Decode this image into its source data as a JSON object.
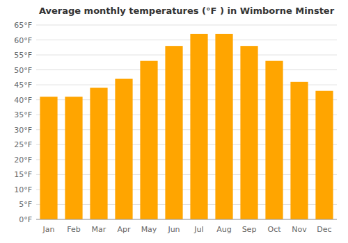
{
  "chart_data": {
    "type": "bar",
    "title": "Average monthly temperatures (°F ) in Wimborne Minster",
    "categories": [
      "Jan",
      "Feb",
      "Mar",
      "Apr",
      "May",
      "Jun",
      "Jul",
      "Aug",
      "Sep",
      "Oct",
      "Nov",
      "Dec"
    ],
    "values": [
      41,
      41,
      44,
      47,
      53,
      58,
      62,
      62,
      58,
      53,
      46,
      43
    ],
    "color": "#FFA500",
    "ylim": [
      0,
      65
    ],
    "yticks": [
      {
        "value": 0,
        "label": "0°F"
      },
      {
        "value": 5,
        "label": "5°F"
      },
      {
        "value": 10,
        "label": "10°F"
      },
      {
        "value": 15,
        "label": "15°F"
      },
      {
        "value": 20,
        "label": "20°F"
      },
      {
        "value": 25,
        "label": "25°F"
      },
      {
        "value": 30,
        "label": "30°F"
      },
      {
        "value": 35,
        "label": "35°F"
      },
      {
        "value": 40,
        "label": "40°F"
      },
      {
        "value": 45,
        "label": "45°F"
      },
      {
        "value": 50,
        "label": "50°F"
      },
      {
        "value": 55,
        "label": "55°F"
      },
      {
        "value": 60,
        "label": "60°F"
      },
      {
        "value": 65,
        "label": "65°F"
      }
    ],
    "grid": true
  }
}
